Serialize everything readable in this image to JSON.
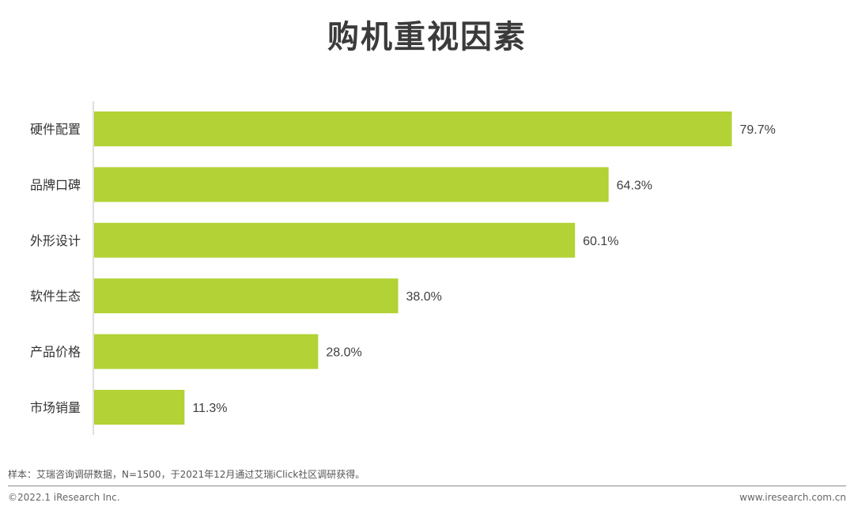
{
  "chart_data": {
    "type": "bar",
    "orientation": "horizontal",
    "title": "购机重视因素",
    "categories": [
      "硬件配置",
      "品牌口碑",
      "外形设计",
      "软件生态",
      "产品价格",
      "市场销量"
    ],
    "values": [
      79.7,
      64.3,
      60.1,
      38.0,
      28.0,
      11.3
    ],
    "value_labels": [
      "79.7%",
      "64.3%",
      "60.1%",
      "38.0%",
      "28.0%",
      "11.3%"
    ],
    "unit": "%",
    "xlim": [
      0,
      100
    ],
    "grid": false,
    "legend": "none",
    "bar_color": "#b2d235"
  },
  "footer": {
    "note": "样本：艾瑞咨询调研数据，N=1500，于2021年12月通过艾瑞iClick社区调研获得。",
    "copyright": "©2022.1 iResearch Inc.",
    "website": "www.iresearch.com.cn"
  }
}
